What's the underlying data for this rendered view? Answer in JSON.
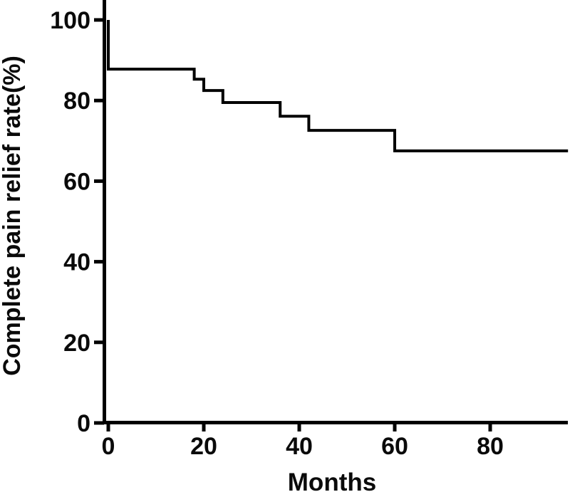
{
  "page": {
    "background_color": "#ffffff",
    "foreground_color": "#000000"
  },
  "chart_data": {
    "type": "line",
    "subtype": "kaplan-meier-step-curve",
    "title": "",
    "xlabel": "Months",
    "ylabel": "Complete pain relief rate(%)",
    "grid": false,
    "legend": "none",
    "xlim": [
      0,
      96.3
    ],
    "ylim": [
      0,
      105
    ],
    "x_ticks": [
      {
        "value": 0,
        "label": "0"
      },
      {
        "value": 20,
        "label": "20"
      },
      {
        "value": 40,
        "label": "40"
      },
      {
        "value": 60,
        "label": "60"
      },
      {
        "value": 80,
        "label": "80"
      }
    ],
    "y_ticks": [
      {
        "value": 0,
        "label": "0"
      },
      {
        "value": 20,
        "label": "20"
      },
      {
        "value": 40,
        "label": "40"
      },
      {
        "value": 60,
        "label": "60"
      },
      {
        "value": 80,
        "label": "80"
      },
      {
        "value": 100,
        "label": "100"
      }
    ],
    "series": [
      {
        "name": "complete-pain-relief-rate",
        "color": "#000000",
        "line_width": 4,
        "step_times_months": [
          0,
          0,
          18,
          20,
          24,
          36,
          42,
          60
        ],
        "step_percent": [
          100,
          87.8,
          85.3,
          82.5,
          79.5,
          76.1,
          72.6,
          67.5
        ],
        "end_time_months": 96.3
      }
    ]
  }
}
